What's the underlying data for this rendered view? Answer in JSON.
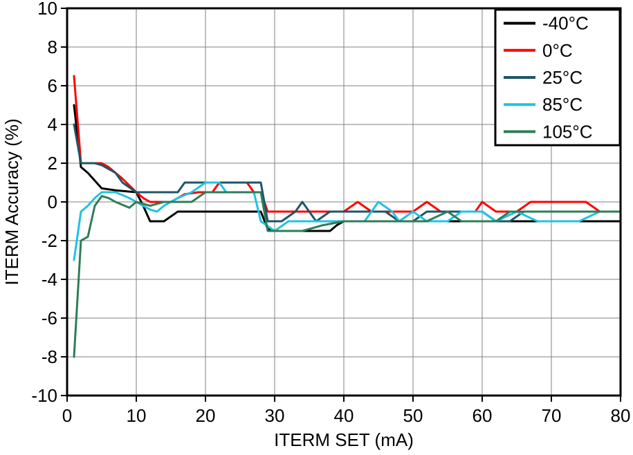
{
  "chart_data": {
    "type": "line",
    "title": "",
    "xlabel": "ITERM SET (mA)",
    "ylabel": "ITERM Accuracy (%)",
    "xlim": [
      0,
      80
    ],
    "ylim": [
      -10,
      10
    ],
    "x_ticks": [
      0,
      10,
      20,
      30,
      40,
      50,
      60,
      70,
      80
    ],
    "y_ticks": [
      10,
      8,
      6,
      4,
      2,
      0,
      -2,
      -4,
      -6,
      -8,
      -10
    ],
    "grid": true,
    "grid_color": "#808080",
    "frame_color": "#000000",
    "legend_position": "top-right",
    "series": [
      {
        "name": "-40°C",
        "color": "#000000",
        "points": [
          [
            1,
            5
          ],
          [
            2,
            1.8
          ],
          [
            3,
            1.5
          ],
          [
            5,
            0.7
          ],
          [
            7,
            0.6
          ],
          [
            10,
            0.5
          ],
          [
            11,
            -0.2
          ],
          [
            12,
            -1
          ],
          [
            14,
            -1
          ],
          [
            16,
            -0.5
          ],
          [
            20,
            -0.5
          ],
          [
            24,
            -0.5
          ],
          [
            28,
            -0.5
          ],
          [
            29,
            -1.4
          ],
          [
            30,
            -1.5
          ],
          [
            34,
            -1.5
          ],
          [
            38,
            -1.5
          ],
          [
            39,
            -1.2
          ],
          [
            40,
            -1
          ],
          [
            45,
            -1
          ],
          [
            50,
            -1
          ],
          [
            55,
            -1
          ],
          [
            60,
            -1
          ],
          [
            65,
            -1
          ],
          [
            70,
            -1
          ],
          [
            75,
            -1
          ],
          [
            80,
            -1
          ]
        ]
      },
      {
        "name": "0°C",
        "color": "#ff0000",
        "points": [
          [
            1,
            6.5
          ],
          [
            2,
            2
          ],
          [
            4,
            2
          ],
          [
            5,
            2
          ],
          [
            6,
            1.8
          ],
          [
            8,
            1.2
          ],
          [
            10,
            0.5
          ],
          [
            11,
            0.2
          ],
          [
            12,
            0
          ],
          [
            14,
            0
          ],
          [
            15,
            0
          ],
          [
            17,
            0.4
          ],
          [
            19,
            0.5
          ],
          [
            21,
            0.5
          ],
          [
            22,
            1
          ],
          [
            24,
            1
          ],
          [
            26,
            1
          ],
          [
            27,
            0.5
          ],
          [
            28,
            0.5
          ],
          [
            29,
            -0.5
          ],
          [
            31,
            -0.5
          ],
          [
            34,
            -0.5
          ],
          [
            37,
            -0.5
          ],
          [
            40,
            -0.5
          ],
          [
            42,
            0
          ],
          [
            44,
            -0.5
          ],
          [
            47,
            -0.5
          ],
          [
            50,
            -0.5
          ],
          [
            52,
            0
          ],
          [
            54,
            -0.5
          ],
          [
            57,
            -0.5
          ],
          [
            59,
            -0.5
          ],
          [
            60,
            0
          ],
          [
            62,
            -0.5
          ],
          [
            65,
            -0.5
          ],
          [
            67,
            0
          ],
          [
            70,
            0
          ],
          [
            73,
            0
          ],
          [
            75,
            0
          ],
          [
            77,
            -0.5
          ],
          [
            80,
            -0.5
          ]
        ]
      },
      {
        "name": "25°C",
        "color": "#1c5668",
        "points": [
          [
            1,
            4
          ],
          [
            2,
            2
          ],
          [
            4,
            2
          ],
          [
            5,
            1.9
          ],
          [
            7,
            1.5
          ],
          [
            8,
            1
          ],
          [
            10,
            0.5
          ],
          [
            12,
            0.5
          ],
          [
            14,
            0.5
          ],
          [
            16,
            0.5
          ],
          [
            17,
            1
          ],
          [
            20,
            1
          ],
          [
            23,
            1
          ],
          [
            26,
            1
          ],
          [
            28,
            1
          ],
          [
            29,
            -1
          ],
          [
            31,
            -1
          ],
          [
            33,
            -0.5
          ],
          [
            34,
            0
          ],
          [
            35,
            -0.5
          ],
          [
            36,
            -1
          ],
          [
            38,
            -0.5
          ],
          [
            40,
            -0.5
          ],
          [
            43,
            -0.5
          ],
          [
            46,
            -0.5
          ],
          [
            48,
            -1
          ],
          [
            50,
            -1
          ],
          [
            52,
            -0.5
          ],
          [
            55,
            -0.5
          ],
          [
            58,
            -0.5
          ],
          [
            60,
            -0.5
          ],
          [
            62,
            -1
          ],
          [
            64,
            -1
          ],
          [
            66,
            -0.5
          ],
          [
            70,
            -0.5
          ],
          [
            74,
            -0.5
          ],
          [
            78,
            -0.5
          ],
          [
            80,
            -0.5
          ]
        ]
      },
      {
        "name": "85°C",
        "color": "#1fc3e3",
        "points": [
          [
            1,
            -3
          ],
          [
            2,
            -0.5
          ],
          [
            3,
            -0.2
          ],
          [
            4,
            0.2
          ],
          [
            5,
            0.5
          ],
          [
            7,
            0.5
          ],
          [
            9,
            0.2
          ],
          [
            10,
            0
          ],
          [
            12,
            -0.4
          ],
          [
            13,
            -0.5
          ],
          [
            14,
            -0.2
          ],
          [
            16,
            0.2
          ],
          [
            18,
            0.5
          ],
          [
            20,
            1
          ],
          [
            22,
            1
          ],
          [
            23,
            0.5
          ],
          [
            25,
            0.5
          ],
          [
            27,
            0.5
          ],
          [
            28,
            -1
          ],
          [
            30,
            -1.5
          ],
          [
            32,
            -1
          ],
          [
            35,
            -1
          ],
          [
            38,
            -1
          ],
          [
            41,
            -1
          ],
          [
            43,
            -1
          ],
          [
            45,
            0
          ],
          [
            47,
            -0.5
          ],
          [
            48,
            -1
          ],
          [
            50,
            -0.5
          ],
          [
            52,
            -1
          ],
          [
            55,
            -1
          ],
          [
            57,
            -0.5
          ],
          [
            60,
            -0.5
          ],
          [
            62,
            -1
          ],
          [
            65,
            -0.5
          ],
          [
            68,
            -1
          ],
          [
            71,
            -1
          ],
          [
            74,
            -1
          ],
          [
            77,
            -0.5
          ],
          [
            80,
            -0.5
          ]
        ]
      },
      {
        "name": "105°C",
        "color": "#2e7d56",
        "points": [
          [
            1,
            -8
          ],
          [
            2,
            -2
          ],
          [
            3,
            -1.8
          ],
          [
            4,
            -0.2
          ],
          [
            5,
            0.3
          ],
          [
            6,
            0.2
          ],
          [
            7,
            0
          ],
          [
            9,
            -0.3
          ],
          [
            10,
            0
          ],
          [
            12,
            -0.2
          ],
          [
            14,
            0
          ],
          [
            16,
            0
          ],
          [
            18,
            0
          ],
          [
            20,
            0.5
          ],
          [
            23,
            0.5
          ],
          [
            26,
            0.5
          ],
          [
            28,
            0.5
          ],
          [
            29,
            -1.5
          ],
          [
            31,
            -1.5
          ],
          [
            34,
            -1.5
          ],
          [
            37,
            -1.2
          ],
          [
            40,
            -1
          ],
          [
            43,
            -1
          ],
          [
            46,
            -1
          ],
          [
            49,
            -1
          ],
          [
            52,
            -1
          ],
          [
            55,
            -0.5
          ],
          [
            57,
            -1
          ],
          [
            60,
            -1
          ],
          [
            62,
            -1
          ],
          [
            64,
            -0.5
          ],
          [
            67,
            -0.5
          ],
          [
            70,
            -0.5
          ],
          [
            73,
            -0.5
          ],
          [
            76,
            -0.5
          ],
          [
            80,
            -0.5
          ]
        ]
      }
    ]
  }
}
